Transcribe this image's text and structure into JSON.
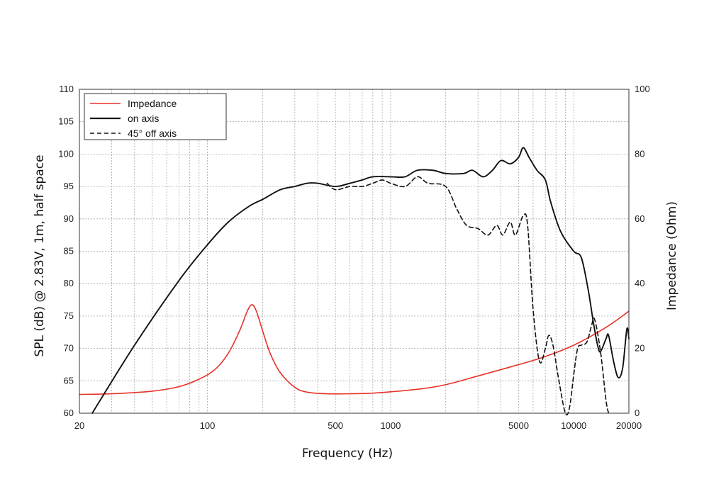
{
  "chart_data": {
    "type": "line",
    "xscale": "log",
    "xlim": [
      20,
      20000
    ],
    "ylim": [
      60,
      110
    ],
    "y2lim": [
      0,
      100
    ],
    "xlabel": "Frequency (Hz)",
    "ylabel": "SPL (dB) @ 2.83V, 1m, half space",
    "y2label": "Impedance (Ohm)",
    "xticks": [
      {
        "value": 20,
        "label": "20"
      },
      {
        "value": 100,
        "label": "100"
      },
      {
        "value": 500,
        "label": "500"
      },
      {
        "value": 1000,
        "label": "1000"
      },
      {
        "value": 5000,
        "label": "5000"
      },
      {
        "value": 10000,
        "label": "10000"
      },
      {
        "value": 20000,
        "label": "20000"
      }
    ],
    "yticks": [
      {
        "value": 60,
        "label": "60"
      },
      {
        "value": 65,
        "label": "65"
      },
      {
        "value": 70,
        "label": "70"
      },
      {
        "value": 75,
        "label": "75"
      },
      {
        "value": 80,
        "label": "80"
      },
      {
        "value": 85,
        "label": "85"
      },
      {
        "value": 90,
        "label": "90"
      },
      {
        "value": 95,
        "label": "95"
      },
      {
        "value": 100,
        "label": "100"
      },
      {
        "value": 105,
        "label": "105"
      },
      {
        "value": 110,
        "label": "110"
      }
    ],
    "y2ticks": [
      {
        "value": 0,
        "label": "0"
      },
      {
        "value": 20,
        "label": "20"
      },
      {
        "value": 40,
        "label": "40"
      },
      {
        "value": 60,
        "label": "60"
      },
      {
        "value": 80,
        "label": "80"
      },
      {
        "value": 100,
        "label": "100"
      }
    ],
    "grid": true,
    "legend_position": "top-left",
    "series": [
      {
        "name": "Impedance",
        "axis": "right",
        "color": "#e8322a",
        "style": "solid",
        "points": [
          [
            20,
            5.8
          ],
          [
            30,
            6.0
          ],
          [
            50,
            6.8
          ],
          [
            70,
            8.2
          ],
          [
            90,
            10.5
          ],
          [
            110,
            13.5
          ],
          [
            130,
            18.5
          ],
          [
            150,
            25.5
          ],
          [
            165,
            31.5
          ],
          [
            175,
            33.5
          ],
          [
            185,
            31.5
          ],
          [
            200,
            25.5
          ],
          [
            220,
            18.5
          ],
          [
            250,
            12.5
          ],
          [
            300,
            8.0
          ],
          [
            350,
            6.5
          ],
          [
            450,
            6.0
          ],
          [
            600,
            6.0
          ],
          [
            800,
            6.2
          ],
          [
            1000,
            6.6
          ],
          [
            1500,
            7.6
          ],
          [
            2000,
            8.8
          ],
          [
            3000,
            11.5
          ],
          [
            5000,
            15.0
          ],
          [
            7000,
            17.5
          ],
          [
            10000,
            21.0
          ],
          [
            15000,
            26.5
          ],
          [
            20000,
            31.5
          ]
        ]
      },
      {
        "name": "on axis",
        "axis": "left",
        "color": "#111111",
        "style": "solid",
        "points": [
          [
            23.5,
            60.0
          ],
          [
            40,
            70.5
          ],
          [
            70,
            80.5
          ],
          [
            100,
            86.0
          ],
          [
            130,
            89.5
          ],
          [
            170,
            92.0
          ],
          [
            200,
            93.0
          ],
          [
            250,
            94.5
          ],
          [
            300,
            95.0
          ],
          [
            350,
            95.5
          ],
          [
            400,
            95.5
          ],
          [
            500,
            95.0
          ],
          [
            600,
            95.5
          ],
          [
            700,
            96.0
          ],
          [
            800,
            96.5
          ],
          [
            1000,
            96.5
          ],
          [
            1200,
            96.5
          ],
          [
            1400,
            97.5
          ],
          [
            1700,
            97.5
          ],
          [
            2000,
            97.0
          ],
          [
            2500,
            97.0
          ],
          [
            2800,
            97.5
          ],
          [
            3200,
            96.5
          ],
          [
            3600,
            97.5
          ],
          [
            4000,
            99.0
          ],
          [
            4500,
            98.5
          ],
          [
            5000,
            99.5
          ],
          [
            5300,
            101.0
          ],
          [
            5700,
            99.5
          ],
          [
            6300,
            97.5
          ],
          [
            7000,
            96.0
          ],
          [
            7500,
            92.5
          ],
          [
            8500,
            88.0
          ],
          [
            10000,
            85.0
          ],
          [
            11000,
            84.0
          ],
          [
            12000,
            79.0
          ],
          [
            12800,
            74.0
          ],
          [
            13500,
            70.5
          ],
          [
            14000,
            69.5
          ],
          [
            15000,
            71.5
          ],
          [
            15500,
            72.0
          ],
          [
            16500,
            68.0
          ],
          [
            17500,
            65.5
          ],
          [
            18500,
            67.0
          ],
          [
            19500,
            73.0
          ],
          [
            20000,
            71.5
          ]
        ]
      },
      {
        "name": "45° off axis",
        "axis": "left",
        "color": "#111111",
        "style": "dashed",
        "points": [
          [
            450,
            95.5
          ],
          [
            500,
            94.5
          ],
          [
            600,
            95.0
          ],
          [
            700,
            95.0
          ],
          [
            800,
            95.5
          ],
          [
            900,
            96.0
          ],
          [
            1000,
            95.5
          ],
          [
            1200,
            95.0
          ],
          [
            1400,
            96.5
          ],
          [
            1600,
            95.5
          ],
          [
            2000,
            95.0
          ],
          [
            2300,
            91.5
          ],
          [
            2600,
            89.0
          ],
          [
            3000,
            88.5
          ],
          [
            3400,
            87.5
          ],
          [
            3800,
            89.0
          ],
          [
            4100,
            87.5
          ],
          [
            4500,
            89.5
          ],
          [
            4800,
            87.5
          ],
          [
            5300,
            90.5
          ],
          [
            5600,
            89.0
          ],
          [
            6000,
            76.0
          ],
          [
            6500,
            68.0
          ],
          [
            7000,
            70.0
          ],
          [
            7300,
            72.0
          ],
          [
            7700,
            70.5
          ],
          [
            8300,
            65.0
          ],
          [
            9000,
            60.0
          ],
          [
            9500,
            61.0
          ],
          [
            10000,
            66.0
          ],
          [
            10500,
            70.0
          ],
          [
            11000,
            70.5
          ],
          [
            11800,
            71.0
          ],
          [
            12500,
            73.5
          ],
          [
            13000,
            74.5
          ],
          [
            14000,
            69.5
          ],
          [
            15000,
            62.0
          ],
          [
            15500,
            60.0
          ]
        ]
      }
    ]
  }
}
